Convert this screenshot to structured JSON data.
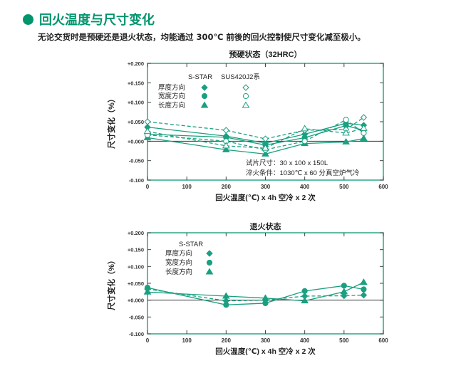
{
  "header": {
    "title": "回火温度与尺寸变化",
    "subtitle": "无论交货时是预硬还是退火状态，均能通过 300℃ 前後的回火控制使尺寸变化减至极小。"
  },
  "colors": {
    "accent": "#00956d",
    "line": "#1aa080"
  },
  "chart_data": [
    {
      "type": "line",
      "title": "预硬状态（32HRC）",
      "xlabel": "回火温度(℃) x 4h 空冷 x 2 次",
      "ylabel": "尺寸变化（%）",
      "xlim": [
        0,
        600
      ],
      "ylim": [
        -0.1,
        0.2
      ],
      "xticks": [
        "0",
        "100",
        "200",
        "300",
        "400",
        "500",
        "600"
      ],
      "yticks": [
        "-0.100",
        "-0.050",
        "+0.000",
        "+0.050",
        "+0.100",
        "+0.150",
        "+0.200"
      ],
      "legend_headers": [
        "S-STAR",
        "SUS420J2系"
      ],
      "legend_rows": [
        "厚度方向",
        "宽度方向",
        "长度方向"
      ],
      "annotations": [
        "试片尺寸：30 x 100 x 150L",
        "淬火条件：1030℃ x 60 分真空炉气冷"
      ],
      "x": [
        0,
        200,
        300,
        400,
        505,
        550
      ],
      "series": [
        {
          "name": "S-STAR 厚度方向",
          "marker": "diamond-filled",
          "dash": false,
          "values": [
            0.036,
            0.013,
            -0.005,
            0.018,
            0.046,
            0.041
          ]
        },
        {
          "name": "S-STAR 宽度方向",
          "marker": "circle-filled",
          "dash": false,
          "values": [
            0.018,
            0.01,
            -0.01,
            0.009,
            0.04,
            0.028
          ]
        },
        {
          "name": "S-STAR 长度方向",
          "marker": "triangle-filled",
          "dash": false,
          "values": [
            0.009,
            -0.022,
            -0.033,
            -0.006,
            -0.002,
            0.007
          ]
        },
        {
          "name": "SUS420J2系 厚度方向",
          "marker": "diamond-open",
          "dash": true,
          "values": [
            0.05,
            0.028,
            0.006,
            0.028,
            0.03,
            0.061
          ]
        },
        {
          "name": "SUS420J2系 宽度方向",
          "marker": "circle-open",
          "dash": true,
          "values": [
            0.016,
            0.0,
            -0.022,
            0.0,
            0.055,
            0.021
          ]
        },
        {
          "name": "SUS420J2系 长度方向",
          "marker": "triangle-open",
          "dash": true,
          "values": [
            0.025,
            -0.012,
            -0.018,
            0.032,
            0.021,
            0.033
          ]
        }
      ]
    },
    {
      "type": "line",
      "title": "退火状态",
      "xlabel": "回火温度(℃) x 4h 空冷 x 2 次",
      "ylabel": "尺寸变化（%）",
      "xlim": [
        0,
        600
      ],
      "ylim": [
        -0.1,
        0.2
      ],
      "xticks": [
        "0",
        "100",
        "200",
        "300",
        "400",
        "500",
        "600"
      ],
      "yticks": [
        "-0.100",
        "-0.050",
        "+0.000",
        "+0.050",
        "+0.100",
        "+0.150",
        "+0.200"
      ],
      "legend_headers": [
        "S-STAR"
      ],
      "legend_rows": [
        "厚度方向",
        "宽度方向",
        "长度方向"
      ],
      "x": [
        0,
        200,
        300,
        400,
        500,
        550
      ],
      "series": [
        {
          "name": "S-STAR 厚度方向",
          "marker": "diamond-filled",
          "dash": true,
          "values": [
            0.033,
            -0.002,
            0.0,
            0.012,
            0.013,
            0.015
          ]
        },
        {
          "name": "S-STAR 宽度方向",
          "marker": "circle-filled",
          "dash": false,
          "values": [
            0.037,
            -0.014,
            -0.009,
            0.027,
            0.043,
            0.032
          ]
        },
        {
          "name": "S-STAR 长度方向",
          "marker": "triangle-filled",
          "dash": false,
          "values": [
            0.024,
            0.012,
            0.006,
            -0.002,
            0.025,
            0.053
          ]
        }
      ]
    }
  ]
}
